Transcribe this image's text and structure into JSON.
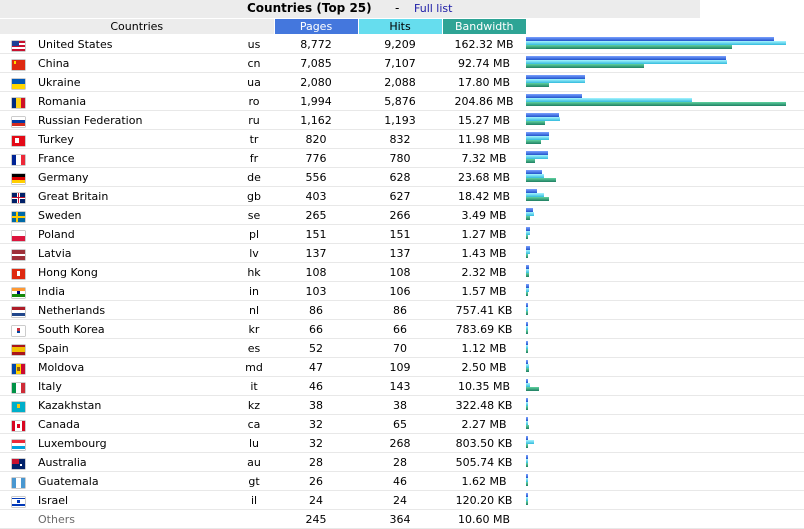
{
  "header": {
    "title": "Countries (Top 25)",
    "separator": "-",
    "full_list_link": "Full list"
  },
  "columns": {
    "countries": "Countries",
    "pages": "Pages",
    "hits": "Hits",
    "bandwidth": "Bandwidth"
  },
  "rows": [
    {
      "country": "United States",
      "code": "us",
      "pages": "8,772",
      "hits": "9,209",
      "bandwidth": "162.32 MB",
      "flag": "us-flag-icon"
    },
    {
      "country": "China",
      "code": "cn",
      "pages": "7,085",
      "hits": "7,107",
      "bandwidth": "92.74 MB",
      "flag": "cn-flag-icon"
    },
    {
      "country": "Ukraine",
      "code": "ua",
      "pages": "2,080",
      "hits": "2,088",
      "bandwidth": "17.80 MB",
      "flag": "ua-flag-icon"
    },
    {
      "country": "Romania",
      "code": "ro",
      "pages": "1,994",
      "hits": "5,876",
      "bandwidth": "204.86 MB",
      "flag": "ro-flag-icon"
    },
    {
      "country": "Russian Federation",
      "code": "ru",
      "pages": "1,162",
      "hits": "1,193",
      "bandwidth": "15.27 MB",
      "flag": "ru-flag-icon"
    },
    {
      "country": "Turkey",
      "code": "tr",
      "pages": "820",
      "hits": "832",
      "bandwidth": "11.98 MB",
      "flag": "tr-flag-icon"
    },
    {
      "country": "France",
      "code": "fr",
      "pages": "776",
      "hits": "780",
      "bandwidth": "7.32 MB",
      "flag": "fr-flag-icon"
    },
    {
      "country": "Germany",
      "code": "de",
      "pages": "556",
      "hits": "628",
      "bandwidth": "23.68 MB",
      "flag": "de-flag-icon"
    },
    {
      "country": "Great Britain",
      "code": "gb",
      "pages": "403",
      "hits": "627",
      "bandwidth": "18.42 MB",
      "flag": "gb-flag-icon"
    },
    {
      "country": "Sweden",
      "code": "se",
      "pages": "265",
      "hits": "266",
      "bandwidth": "3.49 MB",
      "flag": "se-flag-icon"
    },
    {
      "country": "Poland",
      "code": "pl",
      "pages": "151",
      "hits": "151",
      "bandwidth": "1.27 MB",
      "flag": "pl-flag-icon"
    },
    {
      "country": "Latvia",
      "code": "lv",
      "pages": "137",
      "hits": "137",
      "bandwidth": "1.43 MB",
      "flag": "lv-flag-icon"
    },
    {
      "country": "Hong Kong",
      "code": "hk",
      "pages": "108",
      "hits": "108",
      "bandwidth": "2.32 MB",
      "flag": "hk-flag-icon"
    },
    {
      "country": "India",
      "code": "in",
      "pages": "103",
      "hits": "106",
      "bandwidth": "1.57 MB",
      "flag": "in-flag-icon"
    },
    {
      "country": "Netherlands",
      "code": "nl",
      "pages": "86",
      "hits": "86",
      "bandwidth": "757.41 KB",
      "flag": "nl-flag-icon"
    },
    {
      "country": "South Korea",
      "code": "kr",
      "pages": "66",
      "hits": "66",
      "bandwidth": "783.69 KB",
      "flag": "kr-flag-icon"
    },
    {
      "country": "Spain",
      "code": "es",
      "pages": "52",
      "hits": "70",
      "bandwidth": "1.12 MB",
      "flag": "es-flag-icon"
    },
    {
      "country": "Moldova",
      "code": "md",
      "pages": "47",
      "hits": "109",
      "bandwidth": "2.50 MB",
      "flag": "md-flag-icon"
    },
    {
      "country": "Italy",
      "code": "it",
      "pages": "46",
      "hits": "143",
      "bandwidth": "10.35 MB",
      "flag": "it-flag-icon"
    },
    {
      "country": "Kazakhstan",
      "code": "kz",
      "pages": "38",
      "hits": "38",
      "bandwidth": "322.48 KB",
      "flag": "kz-flag-icon"
    },
    {
      "country": "Canada",
      "code": "ca",
      "pages": "32",
      "hits": "65",
      "bandwidth": "2.27 MB",
      "flag": "ca-flag-icon"
    },
    {
      "country": "Luxembourg",
      "code": "lu",
      "pages": "32",
      "hits": "268",
      "bandwidth": "803.50 KB",
      "flag": "lu-flag-icon"
    },
    {
      "country": "Australia",
      "code": "au",
      "pages": "28",
      "hits": "28",
      "bandwidth": "505.74 KB",
      "flag": "au-flag-icon"
    },
    {
      "country": "Guatemala",
      "code": "gt",
      "pages": "26",
      "hits": "46",
      "bandwidth": "1.62 MB",
      "flag": "gt-flag-icon"
    },
    {
      "country": "Israel",
      "code": "il",
      "pages": "24",
      "hits": "24",
      "bandwidth": "120.20 KB",
      "flag": "il-flag-icon"
    }
  ],
  "others": {
    "label": "Others",
    "pages": "245",
    "hits": "364",
    "bandwidth": "10.60 MB"
  },
  "bar_values": [
    {
      "pages": 8772,
      "hits": 9209,
      "bandwidth_mb": 162.32
    },
    {
      "pages": 7085,
      "hits": 7107,
      "bandwidth_mb": 92.74
    },
    {
      "pages": 2080,
      "hits": 2088,
      "bandwidth_mb": 17.8
    },
    {
      "pages": 1994,
      "hits": 5876,
      "bandwidth_mb": 204.86
    },
    {
      "pages": 1162,
      "hits": 1193,
      "bandwidth_mb": 15.27
    },
    {
      "pages": 820,
      "hits": 832,
      "bandwidth_mb": 11.98
    },
    {
      "pages": 776,
      "hits": 780,
      "bandwidth_mb": 7.32
    },
    {
      "pages": 556,
      "hits": 628,
      "bandwidth_mb": 23.68
    },
    {
      "pages": 403,
      "hits": 627,
      "bandwidth_mb": 18.42
    },
    {
      "pages": 265,
      "hits": 266,
      "bandwidth_mb": 3.49
    },
    {
      "pages": 151,
      "hits": 151,
      "bandwidth_mb": 1.27
    },
    {
      "pages": 137,
      "hits": 137,
      "bandwidth_mb": 1.43
    },
    {
      "pages": 108,
      "hits": 108,
      "bandwidth_mb": 2.32
    },
    {
      "pages": 103,
      "hits": 106,
      "bandwidth_mb": 1.57
    },
    {
      "pages": 86,
      "hits": 86,
      "bandwidth_mb": 0.74
    },
    {
      "pages": 66,
      "hits": 66,
      "bandwidth_mb": 0.77
    },
    {
      "pages": 52,
      "hits": 70,
      "bandwidth_mb": 1.12
    },
    {
      "pages": 47,
      "hits": 109,
      "bandwidth_mb": 2.5
    },
    {
      "pages": 46,
      "hits": 143,
      "bandwidth_mb": 10.35
    },
    {
      "pages": 38,
      "hits": 38,
      "bandwidth_mb": 0.31
    },
    {
      "pages": 32,
      "hits": 65,
      "bandwidth_mb": 2.27
    },
    {
      "pages": 32,
      "hits": 268,
      "bandwidth_mb": 0.78
    },
    {
      "pages": 28,
      "hits": 28,
      "bandwidth_mb": 0.49
    },
    {
      "pages": 26,
      "hits": 46,
      "bandwidth_mb": 1.62
    },
    {
      "pages": 24,
      "hits": 24,
      "bandwidth_mb": 0.12
    }
  ],
  "colors": {
    "pages_header": "#4477dd",
    "hits_header": "#66ddee",
    "bandwidth_header": "#2ea495",
    "link": "#1a1aa6"
  }
}
